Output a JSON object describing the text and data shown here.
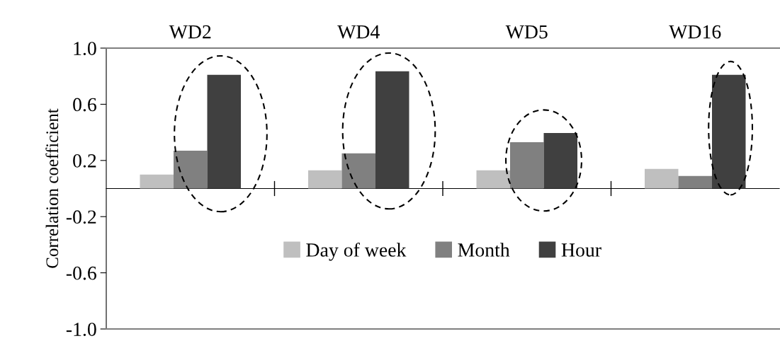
{
  "chart_data": {
    "type": "bar",
    "ylabel": "Correlation coefficient",
    "categories": [
      "WD2",
      "WD4",
      "WD5",
      "WD16"
    ],
    "series": [
      {
        "name": "Day of week",
        "color": "#bfbfbf",
        "values": [
          0.1,
          0.13,
          0.13,
          0.14
        ]
      },
      {
        "name": "Month",
        "color": "#808080",
        "values": [
          0.27,
          0.25,
          0.33,
          0.09
        ]
      },
      {
        "name": "Hour",
        "color": "#404040",
        "values": [
          0.81,
          0.835,
          0.395,
          0.81
        ]
      }
    ],
    "ylim": [
      -1.0,
      1.0
    ],
    "yticks": [
      {
        "value": -1.0,
        "label": "-1.0"
      },
      {
        "value": -0.6,
        "label": "-0.6"
      },
      {
        "value": -0.2,
        "label": "-0.2"
      },
      {
        "value": 0.2,
        "label": "0.2"
      },
      {
        "value": 0.6,
        "label": "0.6"
      },
      {
        "value": 1.0,
        "label": "1.0"
      }
    ],
    "grid": false,
    "legend": "bottom"
  }
}
